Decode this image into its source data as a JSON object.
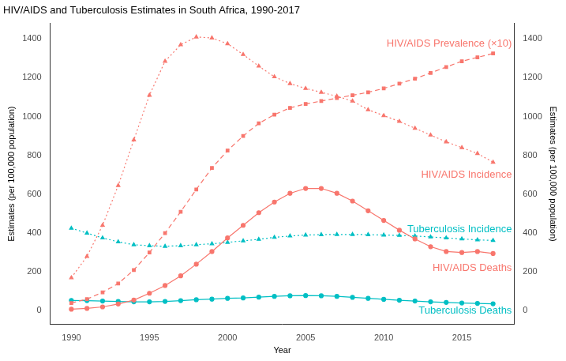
{
  "chart_data": {
    "type": "line",
    "title": "HIV/AIDS and Tuberculosis Estimates in South Africa, 1990-2017",
    "x_label": "Year",
    "y_label": "Estimates (per 100,000 population)",
    "y2_label": "Estimates (per 100,000 population)",
    "x": [
      1990,
      1991,
      1992,
      1993,
      1994,
      1995,
      1996,
      1997,
      1998,
      1999,
      2000,
      2001,
      2002,
      2003,
      2004,
      2005,
      2006,
      2007,
      2008,
      2009,
      2010,
      2011,
      2012,
      2013,
      2014,
      2015,
      2016,
      2017
    ],
    "xlim": [
      1988.65,
      2018.35
    ],
    "xticks": [
      1990,
      1995,
      2000,
      2005,
      2010,
      2015
    ],
    "ylim": [
      -70,
      1480
    ],
    "yticks": [
      0,
      200,
      400,
      600,
      800,
      1000,
      1200,
      1400
    ],
    "y2lim": [
      -70,
      1480
    ],
    "y2ticks": [
      0,
      200,
      400,
      600,
      800,
      1000,
      1200,
      1400
    ],
    "grid": false,
    "series": [
      {
        "name": "HIV/AIDS Incidence",
        "color": "#F8766D",
        "marker": "triangle",
        "line_style": "dotted",
        "values": [
          170,
          280,
          440,
          645,
          880,
          1110,
          1285,
          1370,
          1410,
          1405,
          1375,
          1320,
          1260,
          1205,
          1170,
          1145,
          1125,
          1105,
          1080,
          1035,
          1005,
          975,
          940,
          905,
          870,
          840,
          810,
          765
        ]
      },
      {
        "name": "HIV/AIDS Prevalence (×10)",
        "color": "#F8766D",
        "marker": "square",
        "line_style": "dashed",
        "values": [
          40,
          60,
          95,
          140,
          210,
          300,
          400,
          510,
          625,
          735,
          825,
          900,
          965,
          1010,
          1045,
          1065,
          1080,
          1095,
          1110,
          1125,
          1145,
          1170,
          1195,
          1225,
          1255,
          1285,
          1305,
          1325
        ]
      },
      {
        "name": "HIV/AIDS Deaths",
        "color": "#F8766D",
        "marker": "circle",
        "line_style": "solid",
        "values": [
          8,
          12,
          20,
          35,
          55,
          90,
          130,
          180,
          240,
          305,
          375,
          440,
          505,
          560,
          605,
          630,
          630,
          605,
          565,
          515,
          465,
          415,
          370,
          330,
          305,
          300,
          305,
          295
        ]
      },
      {
        "name": "Tuberculosis Incidence",
        "color": "#00BFC4",
        "marker": "triangle",
        "line_style": "dotted",
        "values": [
          425,
          400,
          375,
          355,
          340,
          335,
          332,
          335,
          340,
          345,
          352,
          360,
          368,
          378,
          385,
          390,
          392,
          393,
          393,
          392,
          390,
          388,
          385,
          380,
          375,
          370,
          365,
          362
        ]
      },
      {
        "name": "Tuberculosis Deaths",
        "color": "#00BFC4",
        "marker": "circle",
        "line_style": "solid",
        "values": [
          53,
          52,
          50,
          48,
          46,
          46,
          48,
          52,
          57,
          60,
          64,
          66,
          70,
          74,
          77,
          78,
          77,
          74,
          69,
          64,
          59,
          54,
          50,
          46,
          43,
          40,
          38,
          36
        ]
      }
    ],
    "annotations": [
      {
        "text": "HIV/AIDS Prevalence (×10)",
        "x": 2018.2,
        "y": 1375,
        "color": "#F8766D"
      },
      {
        "text": "HIV/AIDS Incidence",
        "x": 2018.2,
        "y": 700,
        "color": "#F8766D"
      },
      {
        "text": "Tuberculosis Incidence",
        "x": 2018.2,
        "y": 418,
        "color": "#00BFC4"
      },
      {
        "text": "HIV/AIDS Deaths",
        "x": 2018.2,
        "y": 220,
        "color": "#F8766D"
      },
      {
        "text": "Tuberculosis Deaths",
        "x": 2018.2,
        "y": -2,
        "color": "#00BFC4"
      }
    ]
  }
}
